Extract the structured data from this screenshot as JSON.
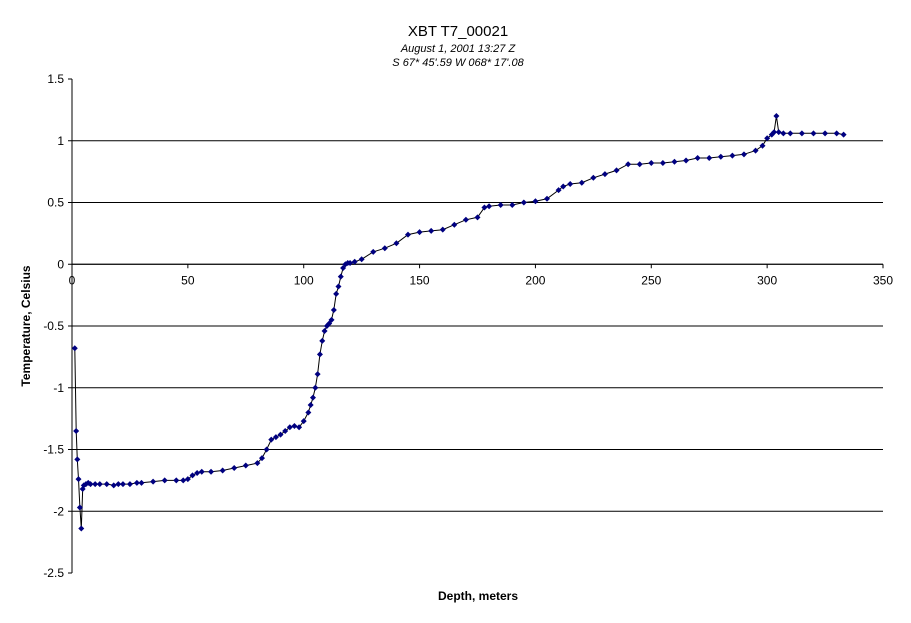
{
  "chart_data": {
    "type": "scatter",
    "title": "XBT T7_00021",
    "subtitle_lines": [
      "August  1, 2001  13:27 Z",
      "S 67* 45'.59  W 068* 17'.08"
    ],
    "xlabel": "Depth, meters",
    "ylabel": "Temperature, Celsius",
    "xlim": [
      0,
      350
    ],
    "ylim": [
      -2.5,
      1.5
    ],
    "xticks": [
      0,
      50,
      100,
      150,
      200,
      250,
      300,
      350
    ],
    "yticks": [
      1.5,
      1,
      0.5,
      0,
      -0.5,
      -1,
      -1.5,
      -2,
      -2.5
    ],
    "xtick_labels": [
      "0",
      "50",
      "100",
      "150",
      "200",
      "250",
      "300",
      "350"
    ],
    "ytick_labels": [
      "1.5",
      "1",
      "0.5",
      "0",
      "-0.5",
      "-1",
      "-1.5",
      "-2",
      "-2.5"
    ],
    "grid": "horizontal",
    "legend": "none",
    "series_color": "#000080",
    "line_color": "#000000",
    "series": [
      {
        "x": [
          1.2,
          1.8,
          2.3,
          2.8,
          3.4,
          4.0,
          4.6,
          5.1,
          6,
          7,
          8,
          10,
          12,
          15,
          18,
          20,
          22,
          25,
          28,
          30,
          35,
          40,
          45,
          48,
          50,
          52,
          54,
          56,
          60,
          65,
          70,
          75,
          80,
          82,
          84,
          86,
          88,
          90,
          92,
          94,
          96,
          98,
          100,
          102,
          103,
          104,
          105,
          106,
          107,
          108,
          109,
          110,
          111,
          112,
          113,
          114,
          115,
          116,
          117,
          118,
          119,
          120,
          122,
          125,
          130,
          135,
          140,
          145,
          150,
          155,
          160,
          165,
          170,
          175,
          178,
          180,
          185,
          190,
          195,
          200,
          205,
          210,
          212,
          215,
          220,
          225,
          230,
          235,
          240,
          245,
          250,
          255,
          260,
          265,
          270,
          275,
          280,
          285,
          290,
          295,
          298,
          300,
          302,
          303,
          304,
          305,
          307,
          310,
          315,
          320,
          325,
          330,
          333
        ],
        "y": [
          -0.68,
          -1.35,
          -1.58,
          -1.74,
          -1.97,
          -2.14,
          -1.82,
          -1.79,
          -1.78,
          -1.77,
          -1.78,
          -1.78,
          -1.78,
          -1.78,
          -1.79,
          -1.78,
          -1.78,
          -1.78,
          -1.77,
          -1.77,
          -1.76,
          -1.75,
          -1.75,
          -1.75,
          -1.74,
          -1.71,
          -1.69,
          -1.68,
          -1.68,
          -1.67,
          -1.65,
          -1.63,
          -1.61,
          -1.57,
          -1.5,
          -1.42,
          -1.4,
          -1.38,
          -1.35,
          -1.32,
          -1.31,
          -1.32,
          -1.27,
          -1.2,
          -1.14,
          -1.08,
          -1.0,
          -0.89,
          -0.73,
          -0.62,
          -0.54,
          -0.5,
          -0.48,
          -0.45,
          -0.37,
          -0.24,
          -0.18,
          -0.1,
          -0.03,
          0.0,
          0.01,
          0.01,
          0.02,
          0.04,
          0.1,
          0.13,
          0.17,
          0.24,
          0.26,
          0.27,
          0.28,
          0.32,
          0.36,
          0.38,
          0.46,
          0.47,
          0.48,
          0.48,
          0.5,
          0.51,
          0.53,
          0.6,
          0.63,
          0.65,
          0.66,
          0.7,
          0.73,
          0.76,
          0.81,
          0.81,
          0.82,
          0.82,
          0.83,
          0.84,
          0.86,
          0.86,
          0.87,
          0.88,
          0.89,
          0.92,
          0.96,
          1.02,
          1.05,
          1.07,
          1.2,
          1.07,
          1.06,
          1.06,
          1.06,
          1.06,
          1.06,
          1.06,
          1.05
        ]
      }
    ]
  }
}
